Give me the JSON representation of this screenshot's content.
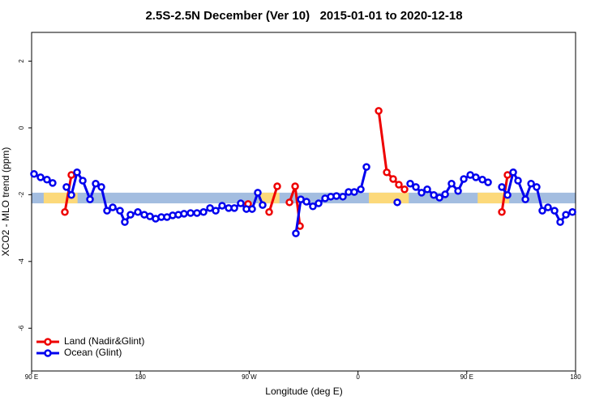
{
  "chart_data": {
    "type": "line",
    "title": "2.5S-2.5N December (Ver 10)   2015-01-01 to 2020-12-18",
    "xlabel": "Longitude (deg E)",
    "ylabel": "XCO2 - MLO trend (ppm)",
    "xlim": [
      90,
      540
    ],
    "ylim": [
      -7.28,
      2.86
    ],
    "xticks": [
      {
        "value": 90,
        "label": "90 E"
      },
      180,
      {
        "value": 270,
        "label": "90 W"
      },
      {
        "value": 360,
        "label": "0"
      },
      {
        "value": 450,
        "label": "90 E"
      },
      {
        "value": 540,
        "label": "180"
      }
    ],
    "yticks": [
      -6,
      -4,
      -2,
      0,
      2
    ],
    "legend": "bottom-left",
    "band": {
      "ylim": [
        -1.94,
        -2.26
      ],
      "ocean_color": "#a3bde0",
      "land_color": "#fcd97a",
      "land_ranges": [
        [
          100,
          128
        ],
        [
          278,
          295
        ],
        [
          369,
          402
        ],
        [
          459,
          485
        ]
      ]
    },
    "series": [
      {
        "name": "Land (Nadir&Glint)",
        "color": "#ee0000",
        "x": [
          117.5,
          122.9,
          null,
          269.1,
          null,
          286.5,
          293.2,
          null,
          303.3,
          308.0,
          312.0,
          null,
          377.1,
          383.8,
          389.1,
          393.8,
          398.5,
          null,
          479.0,
          483.7
        ],
        "values": [
          -2.52,
          -1.41,
          null,
          -2.28,
          null,
          -2.52,
          -1.75,
          null,
          -2.23,
          -1.75,
          -2.94,
          null,
          0.51,
          -1.33,
          -1.53,
          -1.7,
          -1.84,
          null,
          -2.52,
          -1.41
        ]
      },
      {
        "name": "Ocean (Glint)",
        "color": "#0000ee",
        "x": [
          92.0,
          97.4,
          102.7,
          107.4,
          null,
          118.8,
          122.9,
          127.6,
          132.3,
          138.3,
          143.0,
          147.7,
          152.4,
          157.1,
          163.1,
          167.1,
          171.8,
          177.9,
          183.2,
          187.9,
          192.6,
          197.3,
          202.0,
          206.7,
          211.4,
          216.1,
          221.5,
          226.8,
          232.2,
          237.6,
          242.3,
          247.6,
          253.0,
          257.7,
          263.0,
          267.7,
          272.4,
          277.1,
          281.1,
          null,
          308.6,
          312.7,
          317.4,
          322.7,
          327.4,
          332.8,
          337.5,
          342.2,
          347.5,
          352.2,
          356.9,
          362.3,
          367.0,
          null,
          392.5,
          null,
          403.2,
          407.9,
          412.6,
          417.3,
          422.7,
          427.4,
          432.1,
          437.4,
          442.8,
          447.5,
          452.9,
          457.5,
          462.9,
          467.6,
          null,
          479.0,
          483.7,
          488.4,
          492.4,
          498.5,
          503.2,
          507.8,
          512.5,
          517.2,
          522.6,
          527.3,
          532.0,
          537.4
        ],
        "values": [
          -1.38,
          -1.48,
          -1.55,
          -1.65,
          null,
          -1.77,
          -2.01,
          -1.33,
          -1.58,
          -2.14,
          -1.67,
          -1.77,
          -2.48,
          -2.38,
          -2.48,
          -2.82,
          -2.6,
          -2.52,
          -2.6,
          -2.65,
          -2.72,
          -2.67,
          -2.67,
          -2.62,
          -2.6,
          -2.57,
          -2.55,
          -2.55,
          -2.52,
          -2.4,
          -2.48,
          -2.33,
          -2.4,
          -2.4,
          -2.26,
          -2.43,
          -2.43,
          -1.94,
          -2.31,
          null,
          -3.16,
          -2.14,
          -2.21,
          -2.35,
          -2.26,
          -2.11,
          -2.06,
          -2.04,
          -2.06,
          -1.92,
          -1.92,
          -1.84,
          -1.17,
          null,
          -2.23,
          null,
          -1.67,
          -1.77,
          -1.94,
          -1.84,
          -2.01,
          -2.09,
          -1.99,
          -1.67,
          -1.89,
          -1.53,
          -1.41,
          -1.48,
          -1.55,
          -1.63,
          null,
          -1.77,
          -2.01,
          -1.33,
          -1.58,
          -2.14,
          -1.67,
          -1.77,
          -2.48,
          -2.38,
          -2.48,
          -2.82,
          -2.6,
          -2.52
        ]
      }
    ]
  }
}
